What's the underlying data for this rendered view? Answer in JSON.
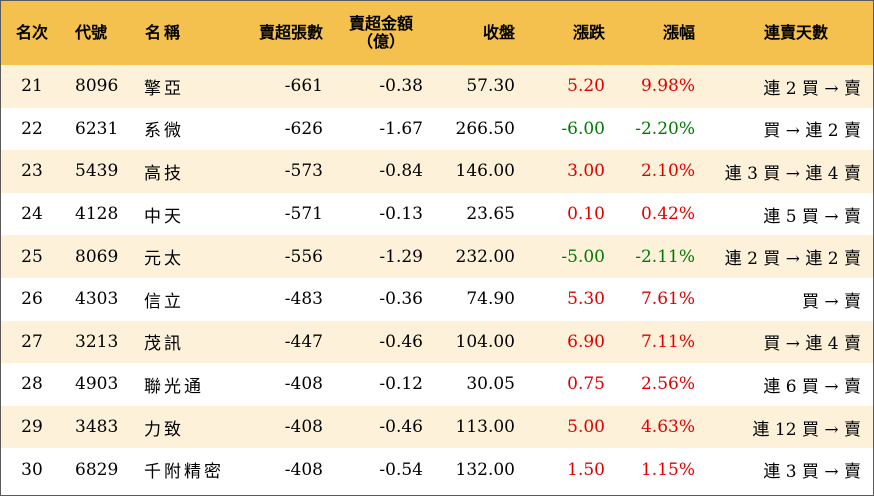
{
  "colors": {
    "header_bg": "#f5c14e",
    "stripe_bg": "#fdf2d9",
    "plain_bg": "#ffffff",
    "up": "#e00000",
    "down": "#007a00"
  },
  "header": {
    "rank": "名次",
    "code": "代號",
    "name": "名稱",
    "lots": "賣超張數",
    "amount_line1": "賣超金額",
    "amount_line2": "（億）",
    "close": "收盤",
    "change": "漲跌",
    "pct": "漲幅",
    "streak": "連賣天數"
  },
  "rows": [
    {
      "rank": "21",
      "code": "8096",
      "name": "擎亞",
      "lots": "-661",
      "amount": "-0.38",
      "close": "57.30",
      "change": "5.20",
      "pct": "9.98%",
      "dir": "up",
      "streak": "連 2 買 → 賣"
    },
    {
      "rank": "22",
      "code": "6231",
      "name": "系微",
      "lots": "-626",
      "amount": "-1.67",
      "close": "266.50",
      "change": "-6.00",
      "pct": "-2.20%",
      "dir": "down",
      "streak": "買 → 連 2 賣"
    },
    {
      "rank": "23",
      "code": "5439",
      "name": "高技",
      "lots": "-573",
      "amount": "-0.84",
      "close": "146.00",
      "change": "3.00",
      "pct": "2.10%",
      "dir": "up",
      "streak": "連 3 買 → 連 4 賣"
    },
    {
      "rank": "24",
      "code": "4128",
      "name": "中天",
      "lots": "-571",
      "amount": "-0.13",
      "close": "23.65",
      "change": "0.10",
      "pct": "0.42%",
      "dir": "up",
      "streak": "連 5 買 → 賣"
    },
    {
      "rank": "25",
      "code": "8069",
      "name": "元太",
      "lots": "-556",
      "amount": "-1.29",
      "close": "232.00",
      "change": "-5.00",
      "pct": "-2.11%",
      "dir": "down",
      "streak": "連 2 買 → 連 2 賣"
    },
    {
      "rank": "26",
      "code": "4303",
      "name": "信立",
      "lots": "-483",
      "amount": "-0.36",
      "close": "74.90",
      "change": "5.30",
      "pct": "7.61%",
      "dir": "up",
      "streak": "買 → 賣"
    },
    {
      "rank": "27",
      "code": "3213",
      "name": "茂訊",
      "lots": "-447",
      "amount": "-0.46",
      "close": "104.00",
      "change": "6.90",
      "pct": "7.11%",
      "dir": "up",
      "streak": "買 → 連 4 賣"
    },
    {
      "rank": "28",
      "code": "4903",
      "name": "聯光通",
      "lots": "-408",
      "amount": "-0.12",
      "close": "30.05",
      "change": "0.75",
      "pct": "2.56%",
      "dir": "up",
      "streak": "連 6 買 → 賣"
    },
    {
      "rank": "29",
      "code": "3483",
      "name": "力致",
      "lots": "-408",
      "amount": "-0.46",
      "close": "113.00",
      "change": "5.00",
      "pct": "4.63%",
      "dir": "up",
      "streak": "連 12 買 → 賣"
    },
    {
      "rank": "30",
      "code": "6829",
      "name": "千附精密",
      "lots": "-408",
      "amount": "-0.54",
      "close": "132.00",
      "change": "1.50",
      "pct": "1.15%",
      "dir": "up",
      "streak": "連 3 買 → 賣"
    }
  ]
}
